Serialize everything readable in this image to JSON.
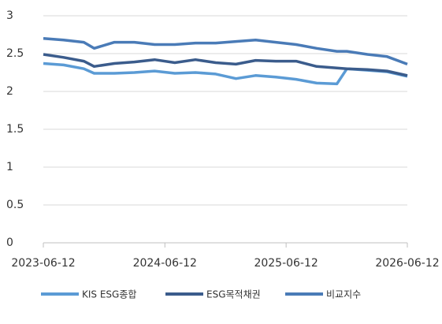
{
  "chart_data": {
    "type": "line",
    "x": [
      "2023-06-12",
      "2023-08-12",
      "2023-10-12",
      "2023-11-12",
      "2024-01-12",
      "2024-03-12",
      "2024-05-12",
      "2024-07-12",
      "2024-09-12",
      "2024-11-12",
      "2025-01-12",
      "2025-03-12",
      "2025-05-12",
      "2025-07-12",
      "2025-09-12",
      "2025-11-12",
      "2025-12-12",
      "2026-02-12",
      "2026-04-12",
      "2026-06-12"
    ],
    "series": [
      {
        "name": "KIS ESG종합",
        "color": "#5b9bd5",
        "values": [
          2.37,
          2.35,
          2.3,
          2.24,
          2.24,
          2.25,
          2.27,
          2.24,
          2.25,
          2.23,
          2.17,
          2.21,
          2.19,
          2.16,
          2.11,
          2.1,
          2.3,
          2.28,
          2.26,
          2.2
        ]
      },
      {
        "name": "ESG목적채권",
        "color": "#3b5c8c",
        "values": [
          2.49,
          2.45,
          2.4,
          2.33,
          2.37,
          2.39,
          2.42,
          2.38,
          2.42,
          2.38,
          2.36,
          2.41,
          2.4,
          2.4,
          2.33,
          2.31,
          2.3,
          2.29,
          2.27,
          2.21
        ]
      },
      {
        "name": "비교지수",
        "color": "#4a7bb7",
        "values": [
          2.7,
          2.68,
          2.65,
          2.57,
          2.65,
          2.65,
          2.62,
          2.62,
          2.64,
          2.64,
          2.66,
          2.68,
          2.65,
          2.62,
          2.57,
          2.53,
          2.53,
          2.49,
          2.46,
          2.36
        ]
      }
    ],
    "xlim": [
      "2023-06-12",
      "2026-06-12"
    ],
    "xticks": [
      "2023-06-12",
      "2024-06-12",
      "2025-06-12",
      "2026-06-12"
    ],
    "ylim": [
      0,
      3
    ],
    "yticks": [
      0,
      0.5,
      1,
      1.5,
      2,
      2.5,
      3
    ],
    "grid": true,
    "legend": "bottom"
  }
}
